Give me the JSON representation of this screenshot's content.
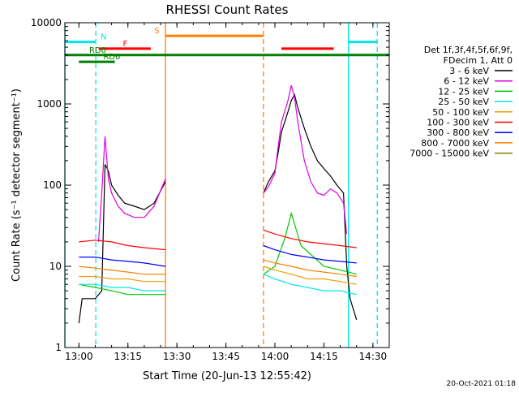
{
  "chart_data": {
    "type": "line",
    "title": "RHESSI Count Rates",
    "xlabel": "Start Time (20-Jun-13 12:55:42)",
    "ylabel": "Count Rate (s⁻¹ detector segment⁻¹)",
    "ylog": true,
    "ylim": [
      1,
      10000
    ],
    "xlim": [
      "12:55:42",
      "14:35:00"
    ],
    "x_unit": "time of day (HH:MM)",
    "x_ticks": [
      "13:00",
      "13:15",
      "13:30",
      "13:45",
      "14:00",
      "14:15",
      "14:30"
    ],
    "y_ticks": [
      "1",
      "10",
      "100",
      "1000",
      "10000"
    ],
    "footer": "20-Oct-2021 01:18",
    "legend": {
      "header": [
        "Det 1f,3f,4f,5f,6f,9f,",
        "FDecim 1, Att 0"
      ],
      "placement": "right-outside",
      "entries": [
        {
          "label": "3 - 6 keV",
          "color": "#000000"
        },
        {
          "label": "6 - 12 keV",
          "color": "#e000e0"
        },
        {
          "label": "12 - 25 keV",
          "color": "#00c800"
        },
        {
          "label": "25 - 50 keV",
          "color": "#00e8e8"
        },
        {
          "label": "50 - 100 keV",
          "color": "#e8a000"
        },
        {
          "label": "100 - 300 keV",
          "color": "#ff0000"
        },
        {
          "label": "300 - 800 keV",
          "color": "#0000ff"
        },
        {
          "label": "800 - 7000 keV",
          "color": "#ff8000"
        },
        {
          "label": "7000 - 15000 keV",
          "color": "#808000"
        }
      ]
    },
    "segments": [
      {
        "start": "13:00:00",
        "end": "13:26:30"
      },
      {
        "start": "13:56:30",
        "end": "14:25:00"
      }
    ],
    "series": [
      {
        "name": "3 - 6 keV",
        "color": "#000000",
        "x": [
          "13:00:00",
          "13:01:00",
          "13:03:00",
          "13:05:00",
          "13:07:00",
          "13:08:00",
          "13:09:00",
          "13:10:00",
          "13:12:00",
          "13:14:00",
          "13:17:00",
          "13:20:00",
          "13:23:00",
          "13:26:30",
          "13:56:30",
          "13:58:00",
          "14:00:00",
          "14:01:00",
          "14:02:00",
          "14:04:00",
          "14:05:00",
          "14:06:00",
          "14:07:00",
          "14:09:00",
          "14:11:00",
          "14:13:00",
          "14:15:00",
          "14:17:00",
          "14:19:00",
          "14:21:00",
          "14:22:00",
          "14:23:00",
          "14:25:00"
        ],
        "y": [
          2,
          4,
          4,
          4,
          5,
          180,
          150,
          100,
          75,
          60,
          55,
          50,
          60,
          110,
          80,
          110,
          150,
          250,
          450,
          800,
          1100,
          1300,
          900,
          500,
          300,
          200,
          160,
          130,
          100,
          80,
          10,
          4,
          2.2
        ]
      },
      {
        "name": "6 - 12 keV",
        "color": "#e000e0",
        "x": [
          "13:06:00",
          "13:07:00",
          "13:08:00",
          "13:09:00",
          "13:10:00",
          "13:12:00",
          "13:14:00",
          "13:17:00",
          "13:20:00",
          "13:23:00",
          "13:26:30",
          "13:56:30",
          "13:58:00",
          "14:00:00",
          "14:01:00",
          "14:02:00",
          "14:04:00",
          "14:05:00",
          "14:06:00",
          "14:07:00",
          "14:09:00",
          "14:11:00",
          "14:13:00",
          "14:15:00",
          "14:17:00",
          "14:19:00",
          "14:21:00",
          "14:22:00"
        ],
        "y": [
          20,
          80,
          400,
          120,
          80,
          55,
          45,
          40,
          40,
          55,
          120,
          80,
          95,
          140,
          300,
          600,
          1100,
          1700,
          1200,
          600,
          200,
          110,
          80,
          75,
          90,
          80,
          60,
          25
        ]
      },
      {
        "name": "12 - 25 keV",
        "color": "#00c800",
        "x": [
          "13:00:00",
          "13:05:00",
          "13:10:00",
          "13:15:00",
          "13:20:00",
          "13:26:30",
          "13:56:30",
          "14:00:00",
          "14:03:00",
          "14:05:00",
          "14:08:00",
          "14:15:00",
          "14:20:00",
          "14:25:00"
        ],
        "y": [
          6,
          5.5,
          5,
          4.5,
          4.5,
          4.5,
          8,
          10,
          22,
          45,
          18,
          10,
          9,
          8
        ]
      },
      {
        "name": "25 - 50 keV",
        "color": "#00e8e8",
        "x": [
          "13:00:00",
          "13:05:00",
          "13:10:00",
          "13:15:00",
          "13:20:00",
          "13:26:30",
          "13:56:30",
          "14:00:00",
          "14:05:00",
          "14:10:00",
          "14:15:00",
          "14:20:00",
          "14:25:00"
        ],
        "y": [
          6,
          6,
          5.5,
          5.5,
          5,
          5,
          8,
          7,
          6,
          5.5,
          5,
          5,
          4.5
        ]
      },
      {
        "name": "50 - 100 keV",
        "color": "#e8a000",
        "x": [
          "13:00:00",
          "13:05:00",
          "13:10:00",
          "13:15:00",
          "13:20:00",
          "13:26:30",
          "13:56:30",
          "14:00:00",
          "14:05:00",
          "14:10:00",
          "14:15:00",
          "14:20:00",
          "14:25:00"
        ],
        "y": [
          7.5,
          7.5,
          7,
          7,
          6.5,
          6.5,
          10,
          9,
          8,
          7,
          7,
          6.5,
          6
        ]
      },
      {
        "name": "100 - 300 keV",
        "color": "#ff0000",
        "x": [
          "13:00:00",
          "13:05:00",
          "13:10:00",
          "13:15:00",
          "13:20:00",
          "13:26:30",
          "13:56:30",
          "14:00:00",
          "14:05:00",
          "14:10:00",
          "14:15:00",
          "14:20:00",
          "14:25:00"
        ],
        "y": [
          20,
          21,
          20,
          18,
          17,
          16,
          28,
          25,
          22,
          20,
          19,
          18,
          17
        ]
      },
      {
        "name": "300 - 800 keV",
        "color": "#0000ff",
        "x": [
          "13:00:00",
          "13:05:00",
          "13:10:00",
          "13:15:00",
          "13:20:00",
          "13:26:30",
          "13:56:30",
          "14:00:00",
          "14:05:00",
          "14:10:00",
          "14:15:00",
          "14:20:00",
          "14:25:00"
        ],
        "y": [
          13,
          13,
          12,
          11.5,
          11,
          10,
          18,
          16,
          14,
          13,
          12,
          11.5,
          11
        ]
      },
      {
        "name": "800 - 7000 keV",
        "color": "#ff8000",
        "x": [
          "13:00:00",
          "13:05:00",
          "13:10:00",
          "13:15:00",
          "13:20:00",
          "13:26:30",
          "13:56:30",
          "14:00:00",
          "14:05:00",
          "14:10:00",
          "14:15:00",
          "14:20:00",
          "14:25:00"
        ],
        "y": [
          10,
          9.5,
          9,
          8.5,
          8,
          8,
          12,
          11,
          10,
          9,
          8.5,
          8,
          7.5
        ]
      }
    ],
    "annotations": {
      "vlines": [
        {
          "time": "12:55:42",
          "color": "#00e8e8",
          "style": "solid"
        },
        {
          "time": "13:05:10",
          "color": "#00e8e8",
          "style": "dashed"
        },
        {
          "time": "13:26:30",
          "color": "#ff8000",
          "style": "solid"
        },
        {
          "time": "13:56:30",
          "color": "#ff8000",
          "style": "dashed"
        },
        {
          "time": "14:22:30",
          "color": "#00e8e8",
          "style": "solid"
        },
        {
          "time": "14:31:20",
          "color": "#00e8e8",
          "style": "dashed"
        }
      ],
      "bars": [
        {
          "label": "N",
          "color": "#00e8e8",
          "start": "12:55:42",
          "end": "13:05:10",
          "level": 5800
        },
        {
          "label": "",
          "color": "#00e8e8",
          "start": "14:22:30",
          "end": "14:31:20",
          "level": 5800
        },
        {
          "label": "S",
          "color": "#ff8000",
          "start": "13:26:30",
          "end": "13:56:30",
          "level": 6900
        },
        {
          "label": "F",
          "color": "#ff0000",
          "start": "13:06:00",
          "end": "13:22:00",
          "level": 4800
        },
        {
          "label": "",
          "color": "#ff0000",
          "start": "14:02:00",
          "end": "14:18:00",
          "level": 4800
        },
        {
          "label": "RD0",
          "color": "#008000",
          "start": "12:55:42",
          "end": "14:35:00",
          "level": 4000
        },
        {
          "label": "RD6",
          "color": "#008000",
          "start": "13:00:00",
          "end": "13:11:00",
          "level": 3300
        }
      ]
    }
  }
}
